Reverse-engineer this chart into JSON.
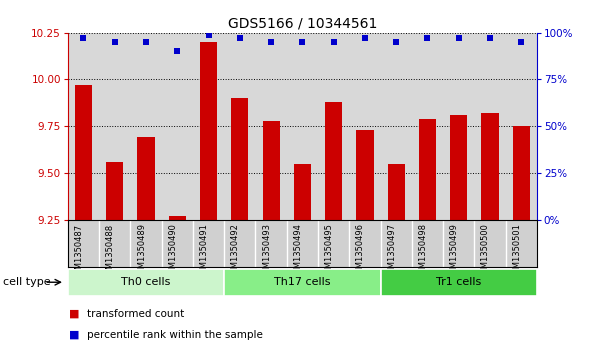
{
  "title": "GDS5166 / 10344561",
  "samples": [
    "GSM1350487",
    "GSM1350488",
    "GSM1350489",
    "GSM1350490",
    "GSM1350491",
    "GSM1350492",
    "GSM1350493",
    "GSM1350494",
    "GSM1350495",
    "GSM1350496",
    "GSM1350497",
    "GSM1350498",
    "GSM1350499",
    "GSM1350500",
    "GSM1350501"
  ],
  "red_values": [
    9.97,
    9.56,
    9.69,
    9.27,
    10.2,
    9.9,
    9.78,
    9.55,
    9.88,
    9.73,
    9.55,
    9.79,
    9.81,
    9.82,
    9.75
  ],
  "blue_values": [
    97,
    95,
    95,
    90,
    99,
    97,
    95,
    95,
    95,
    97,
    95,
    97,
    97,
    97,
    95
  ],
  "groups": [
    {
      "label": "Th0 cells",
      "start": 0,
      "end": 5,
      "color": "#ccf5cc"
    },
    {
      "label": "Th17 cells",
      "start": 5,
      "end": 10,
      "color": "#88ee88"
    },
    {
      "label": "Tr1 cells",
      "start": 10,
      "end": 15,
      "color": "#44cc44"
    }
  ],
  "ylim_left": [
    9.25,
    10.25
  ],
  "ylim_right": [
    0,
    100
  ],
  "yticks_left": [
    9.25,
    9.5,
    9.75,
    10.0,
    10.25
  ],
  "yticks_right": [
    0,
    25,
    50,
    75,
    100
  ],
  "ytick_labels_right": [
    "0%",
    "25%",
    "50%",
    "75%",
    "100%"
  ],
  "bar_color": "#cc0000",
  "dot_color": "#0000cc",
  "plot_bg": "#d8d8d8",
  "label_bg": "#d0d0d0",
  "cell_type_label": "cell type",
  "legend_entries": [
    {
      "label": "transformed count",
      "color": "#cc0000"
    },
    {
      "label": "percentile rank within the sample",
      "color": "#0000cc"
    }
  ],
  "title_fontsize": 10,
  "axis_fontsize": 7.5,
  "label_fontsize": 8
}
